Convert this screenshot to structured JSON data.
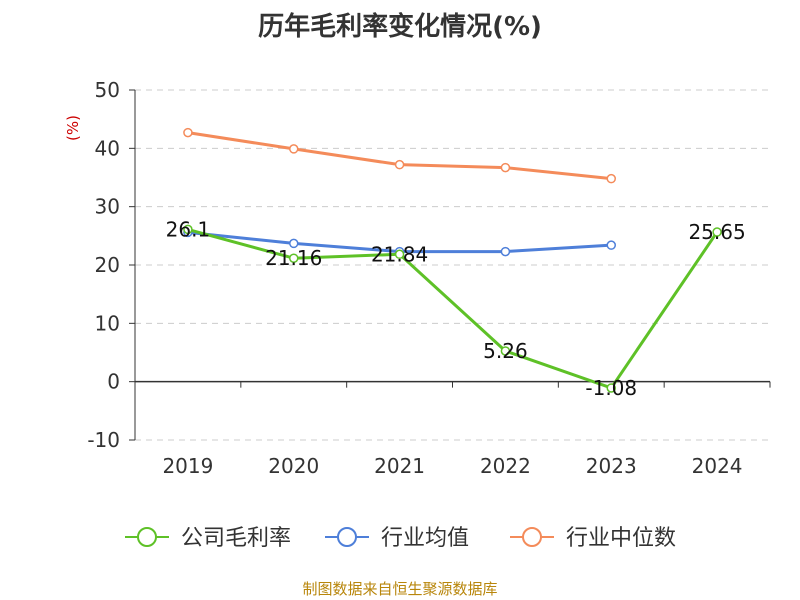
{
  "source": "制图数据来自恒生聚源数据库",
  "chart_data": {
    "type": "line",
    "title": "历年毛利率变化情况(%)",
    "ylabel": "(%)",
    "xlabel": "",
    "categories": [
      "2019",
      "2020",
      "2021",
      "2022",
      "2023",
      "2024"
    ],
    "ylim": [
      -10,
      50
    ],
    "yticks": [
      -10,
      0,
      10,
      20,
      30,
      40,
      50
    ],
    "grid": true,
    "legend_position": "bottom",
    "series": [
      {
        "name": "公司毛利率",
        "color": "#5ec127",
        "values": [
          26.1,
          21.16,
          21.84,
          5.26,
          -1.08,
          25.65
        ],
        "labels": [
          "26.1",
          "21.16",
          "21.84",
          "5.26",
          "-1.08",
          "25.65"
        ]
      },
      {
        "name": "行业均值",
        "color": "#4e7fd9",
        "values": [
          25.6,
          23.7,
          22.3,
          22.3,
          23.4,
          null
        ]
      },
      {
        "name": "行业中位数",
        "color": "#f48b5a",
        "values": [
          42.7,
          39.9,
          37.2,
          36.7,
          34.8,
          null
        ]
      }
    ]
  }
}
